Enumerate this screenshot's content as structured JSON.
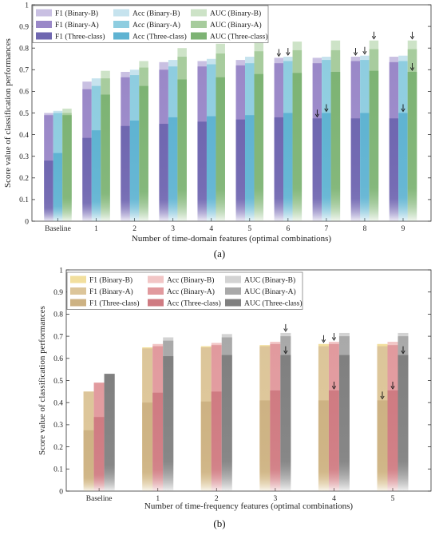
{
  "chart_data": [
    {
      "type": "bar",
      "panel_label": "(a)",
      "xlabel": "Number of time-domain features (optimal combinations)",
      "ylabel": "Score value of classification performances",
      "ylim": [
        0,
        1
      ],
      "yticks": [
        "0",
        "0.1",
        "0.2",
        "0.3",
        "0.4",
        "0.5",
        "0.6",
        "0.7",
        "0.8",
        "0.9",
        "1"
      ],
      "categories": [
        "Baseline",
        "1",
        "2",
        "3",
        "4",
        "5",
        "6",
        "7",
        "8",
        "9"
      ],
      "legend_position": "top-left",
      "legend_entries": [
        "F1 (Binary-B)",
        "Acc (Binary-B)",
        "AUC (Binary-B)",
        "F1 (Binary-A)",
        "Acc (Binary-A)",
        "AUC (Binary-A)",
        "F1 (Three-class)",
        "Acc (Three-class)",
        "AUC (Three-class)"
      ],
      "metrics": [
        {
          "metric": "F1",
          "colors": {
            "Binary-B": "#c9c0e2",
            "Binary-A": "#9a88c8",
            "Three-class": "#6f67b0"
          },
          "series": [
            {
              "name": "F1 (Binary-B)",
              "values": [
                0.5,
                0.645,
                0.69,
                0.735,
                0.74,
                0.745,
                0.755,
                0.755,
                0.76,
                0.76
              ]
            },
            {
              "name": "F1 (Binary-A)",
              "values": [
                0.49,
                0.61,
                0.665,
                0.7,
                0.715,
                0.72,
                0.73,
                0.73,
                0.74,
                0.735
              ]
            },
            {
              "name": "F1 (Three-class)",
              "values": [
                0.28,
                0.385,
                0.44,
                0.45,
                0.46,
                0.47,
                0.48,
                0.475,
                0.475,
                0.475
              ]
            }
          ]
        },
        {
          "metric": "Acc",
          "colors": {
            "Binary-B": "#c6e3ee",
            "Binary-A": "#8ecde0",
            "Three-class": "#5fb3d2"
          },
          "series": [
            {
              "name": "Acc (Binary-B)",
              "values": [
                0.51,
                0.66,
                0.7,
                0.745,
                0.75,
                0.76,
                0.76,
                0.76,
                0.765,
                0.765
              ]
            },
            {
              "name": "Acc (Binary-A)",
              "values": [
                0.5,
                0.625,
                0.675,
                0.715,
                0.725,
                0.73,
                0.74,
                0.745,
                0.745,
                0.74
              ]
            },
            {
              "name": "Acc (Three-class)",
              "values": [
                0.315,
                0.42,
                0.465,
                0.48,
                0.485,
                0.49,
                0.5,
                0.5,
                0.5,
                0.5
              ]
            }
          ]
        },
        {
          "metric": "AUC",
          "colors": {
            "Binary-B": "#cde3c7",
            "Binary-A": "#a7cc9d",
            "Three-class": "#7db374"
          },
          "series": [
            {
              "name": "AUC (Binary-B)",
              "values": [
                0.52,
                0.695,
                0.74,
                0.8,
                0.82,
                0.825,
                0.83,
                0.835,
                0.835,
                0.835
              ]
            },
            {
              "name": "AUC (Binary-A)",
              "values": [
                0.5,
                0.66,
                0.71,
                0.76,
                0.775,
                0.785,
                0.79,
                0.79,
                0.795,
                0.795
              ]
            },
            {
              "name": "AUC (Three-class)",
              "values": [
                0.49,
                0.585,
                0.625,
                0.655,
                0.665,
                0.68,
                0.685,
                0.69,
                0.695,
                0.69
              ]
            }
          ]
        }
      ],
      "arrow_annotations": [
        {
          "category": "6",
          "metric": "F1",
          "level": "Binary-B"
        },
        {
          "category": "6",
          "metric": "Acc",
          "level": "Binary-B"
        },
        {
          "category": "7",
          "metric": "F1",
          "level": "Three-class"
        },
        {
          "category": "7",
          "metric": "Acc",
          "level": "Three-class"
        },
        {
          "category": "8",
          "metric": "F1",
          "level": "Binary-B"
        },
        {
          "category": "8",
          "metric": "Acc",
          "level": "Binary-B"
        },
        {
          "category": "8",
          "metric": "AUC",
          "level": "Binary-B"
        },
        {
          "category": "9",
          "metric": "AUC",
          "level": "Binary-B"
        },
        {
          "category": "9",
          "metric": "Acc",
          "level": "Three-class"
        },
        {
          "category": "9",
          "metric": "AUC",
          "level": "Three-class"
        }
      ]
    },
    {
      "type": "bar",
      "panel_label": "(b)",
      "xlabel": "Number of time-frequency features (optimal combinations)",
      "ylabel": "Score value of classification performances",
      "ylim": [
        0,
        1
      ],
      "yticks": [
        "0",
        "0.1",
        "0.2",
        "0.3",
        "0.4",
        "0.5",
        "0.6",
        "0.7",
        "0.8",
        "0.9",
        "1"
      ],
      "categories": [
        "Baseline",
        "1",
        "2",
        "3",
        "4",
        "5"
      ],
      "legend_position": "top-left",
      "legend_entries": [
        "F1 (Binary-B)",
        "Acc (Binary-B)",
        "AUC (Binary-B)",
        "F1 (Binary-A)",
        "Acc (Binary-A)",
        "AUC (Binary-A)",
        "F1 (Three-class)",
        "Acc (Three-class)",
        "AUC (Three-class)"
      ],
      "metrics": [
        {
          "metric": "F1",
          "colors": {
            "Binary-B": "#f2df9e",
            "Binary-A": "#dcc59a",
            "Three-class": "#cdb283"
          },
          "series": [
            {
              "name": "F1 (Binary-B)",
              "values": [
                0.45,
                0.65,
                0.655,
                0.66,
                0.665,
                0.665
              ]
            },
            {
              "name": "F1 (Binary-A)",
              "values": [
                0.45,
                0.645,
                0.65,
                0.655,
                0.655,
                0.655
              ]
            },
            {
              "name": "F1 (Three-class)",
              "values": [
                0.275,
                0.4,
                0.405,
                0.41,
                0.41,
                0.41
              ]
            }
          ]
        },
        {
          "metric": "Acc",
          "colors": {
            "Binary-B": "#f2c6c6",
            "Binary-A": "#e19a9e",
            "Three-class": "#cf7b82"
          },
          "series": [
            {
              "name": "Acc (Binary-B)",
              "values": [
                0.49,
                0.665,
                0.67,
                0.675,
                0.675,
                0.675
              ]
            },
            {
              "name": "Acc (Binary-A)",
              "values": [
                0.49,
                0.655,
                0.66,
                0.665,
                0.665,
                0.66
              ]
            },
            {
              "name": "Acc (Three-class)",
              "values": [
                0.335,
                0.445,
                0.45,
                0.455,
                0.455,
                0.455
              ]
            }
          ]
        },
        {
          "metric": "AUC",
          "colors": {
            "Binary-B": "#d3d3d3",
            "Binary-A": "#a9a9a9",
            "Three-class": "#808080"
          },
          "series": [
            {
              "name": "AUC (Binary-B)",
              "values": [
                0.53,
                0.695,
                0.71,
                0.715,
                0.715,
                0.715
              ]
            },
            {
              "name": "AUC (Binary-A)",
              "values": [
                0.53,
                0.68,
                0.695,
                0.7,
                0.7,
                0.7
              ]
            },
            {
              "name": "AUC (Three-class)",
              "values": [
                0.53,
                0.61,
                0.615,
                0.615,
                0.615,
                0.615
              ]
            }
          ]
        }
      ],
      "arrow_annotations": [
        {
          "category": "3",
          "metric": "AUC",
          "level": "Binary-B"
        },
        {
          "category": "3",
          "metric": "AUC",
          "level": "Three-class"
        },
        {
          "category": "4",
          "metric": "F1",
          "level": "Binary-B"
        },
        {
          "category": "4",
          "metric": "Acc",
          "level": "Binary-B"
        },
        {
          "category": "4",
          "metric": "Acc",
          "level": "Three-class"
        },
        {
          "category": "5",
          "metric": "AUC",
          "level": "Three-class"
        },
        {
          "category": "5",
          "metric": "F1",
          "level": "Three-class"
        },
        {
          "category": "5",
          "metric": "Acc",
          "level": "Three-class"
        }
      ]
    }
  ]
}
